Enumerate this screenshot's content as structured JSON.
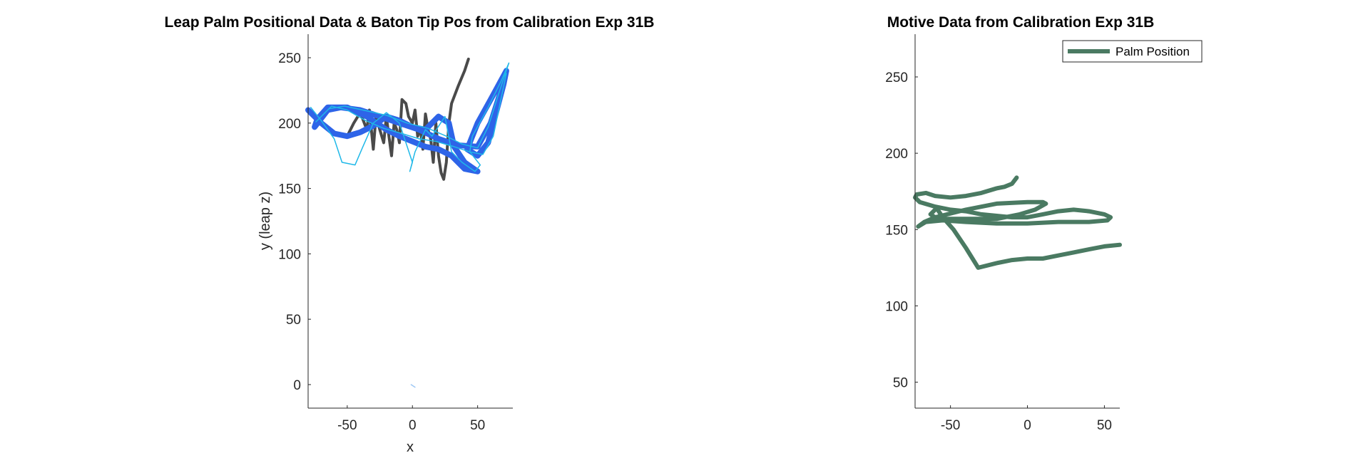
{
  "chart_data": [
    {
      "type": "line",
      "title": "Leap Palm Positional Data & Baton Tip Pos from Calibration Exp 31B",
      "xlabel": "x",
      "ylabel": "y (leap z)",
      "xlim": [
        -80,
        77
      ],
      "ylim": [
        -18,
        268
      ],
      "xticks": [
        -50,
        0,
        50
      ],
      "yticks": [
        0,
        50,
        100,
        150,
        200,
        250
      ],
      "grid": false,
      "series": [
        {
          "color": "#4a4a4a",
          "width": 4,
          "points": [
            [
              -50,
              190
            ],
            [
              -45,
              200
            ],
            [
              -40,
              208
            ],
            [
              -35,
              195
            ],
            [
              -33,
              210
            ],
            [
              -30,
              180
            ],
            [
              -28,
              205
            ],
            [
              -25,
              195
            ],
            [
              -22,
              185
            ],
            [
              -20,
              205
            ],
            [
              -18,
              190
            ],
            [
              -16,
              175
            ],
            [
              -14,
              200
            ],
            [
              -12,
              195
            ],
            [
              -10,
              185
            ],
            [
              -8,
              218
            ],
            [
              -5,
              215
            ],
            [
              -3,
              205
            ],
            [
              0,
              200
            ],
            [
              2,
              210
            ],
            [
              4,
              190
            ],
            [
              6,
              196
            ],
            [
              8,
              180
            ],
            [
              10,
              207
            ],
            [
              12,
              195
            ],
            [
              14,
              188
            ],
            [
              16,
              170
            ],
            [
              18,
              200
            ],
            [
              20,
              175
            ],
            [
              22,
              162
            ],
            [
              24,
              157
            ],
            [
              26,
              170
            ],
            [
              28,
              200
            ],
            [
              30,
              215
            ],
            [
              35,
              228
            ],
            [
              40,
              240
            ],
            [
              43,
              249
            ]
          ]
        },
        {
          "color": "#2e64e8",
          "width": 8,
          "points": [
            [
              -80,
              210
            ],
            [
              -70,
              200
            ],
            [
              -60,
              192
            ],
            [
              -50,
              190
            ],
            [
              -40,
              193
            ],
            [
              -30,
              198
            ],
            [
              -20,
              205
            ],
            [
              -10,
              202
            ],
            [
              0,
              197
            ],
            [
              10,
              195
            ],
            [
              20,
              205
            ],
            [
              28,
              200
            ],
            [
              32,
              182
            ],
            [
              40,
              170
            ],
            [
              50,
              163
            ],
            [
              40,
              165
            ],
            [
              30,
              175
            ],
            [
              20,
              180
            ],
            [
              10,
              182
            ],
            [
              0,
              186
            ],
            [
              -10,
              190
            ],
            [
              -20,
              195
            ],
            [
              -35,
              205
            ],
            [
              -50,
              212
            ],
            [
              -65,
              212
            ],
            [
              -73,
              203
            ],
            [
              -75,
              197
            ],
            [
              -65,
              210
            ],
            [
              -55,
              212
            ],
            [
              -40,
              210
            ],
            [
              -25,
              205
            ],
            [
              -10,
              200
            ],
            [
              5,
              195
            ],
            [
              20,
              188
            ],
            [
              35,
              183
            ],
            [
              50,
              182
            ],
            [
              60,
              200
            ],
            [
              68,
              225
            ],
            [
              72,
              240
            ],
            [
              60,
              218
            ],
            [
              50,
              200
            ],
            [
              42,
              180
            ],
            [
              50,
              175
            ],
            [
              58,
              185
            ],
            [
              70,
              230
            ],
            [
              72,
              240
            ]
          ]
        },
        {
          "color": "#1fb8e8",
          "width": 1.5,
          "points": [
            [
              -78,
              212
            ],
            [
              -70,
              202
            ],
            [
              -60,
              188
            ],
            [
              -54,
              170
            ],
            [
              -44,
              168
            ],
            [
              -38,
              182
            ],
            [
              -30,
              200
            ],
            [
              -20,
              208
            ],
            [
              -10,
              200
            ],
            [
              0,
              170
            ],
            [
              -2,
              163
            ],
            [
              2,
              178
            ],
            [
              10,
              195
            ],
            [
              15,
              190
            ],
            [
              25,
              205
            ],
            [
              30,
              178
            ],
            [
              38,
              170
            ],
            [
              48,
              163
            ],
            [
              52,
              168
            ],
            [
              44,
              178
            ],
            [
              32,
              182
            ],
            [
              18,
              186
            ],
            [
              5,
              188
            ],
            [
              -8,
              192
            ],
            [
              -22,
              196
            ],
            [
              -36,
              202
            ],
            [
              -50,
              210
            ],
            [
              -62,
              213
            ],
            [
              -74,
              201
            ],
            [
              -64,
              211
            ],
            [
              -52,
              213
            ],
            [
              -38,
              210
            ],
            [
              -20,
              206
            ],
            [
              -4,
              200
            ],
            [
              12,
              196
            ],
            [
              26,
              190
            ],
            [
              38,
              184
            ],
            [
              50,
              181
            ],
            [
              58,
              197
            ],
            [
              66,
              222
            ],
            [
              74,
              246
            ],
            [
              68,
              232
            ],
            [
              58,
              212
            ],
            [
              46,
              190
            ],
            [
              44,
              178
            ],
            [
              54,
              176
            ],
            [
              62,
              190
            ],
            [
              72,
              238
            ]
          ]
        },
        {
          "color": "#9ec7f4",
          "width": 1.5,
          "points": [
            [
              -1,
              0
            ],
            [
              2,
              -2
            ]
          ]
        }
      ]
    },
    {
      "type": "line",
      "title": "Motive Data from Calibration Exp 31B",
      "xlim": [
        -73,
        60
      ],
      "ylim": [
        33,
        278
      ],
      "xticks": [
        -50,
        0,
        50
      ],
      "yticks": [
        50,
        100,
        150,
        200,
        250
      ],
      "grid": false,
      "legend": "top-right",
      "series": [
        {
          "name": "Palm Position",
          "color": "#4a7a62",
          "width": 6,
          "points": [
            [
              -7,
              184
            ],
            [
              -10,
              180
            ],
            [
              -15,
              178
            ],
            [
              -20,
              177
            ],
            [
              -30,
              174
            ],
            [
              -40,
              172
            ],
            [
              -50,
              171
            ],
            [
              -60,
              172
            ],
            [
              -66,
              174
            ],
            [
              -72,
              173
            ],
            [
              -73,
              171
            ],
            [
              -70,
              168
            ],
            [
              -60,
              165
            ],
            [
              -50,
              163
            ],
            [
              -40,
              162
            ],
            [
              -30,
              160
            ],
            [
              -20,
              159
            ],
            [
              -10,
              158
            ],
            [
              0,
              158
            ],
            [
              10,
              160
            ],
            [
              20,
              162
            ],
            [
              30,
              163
            ],
            [
              40,
              162
            ],
            [
              50,
              160
            ],
            [
              54,
              158
            ],
            [
              52,
              156
            ],
            [
              40,
              155
            ],
            [
              20,
              155
            ],
            [
              0,
              154
            ],
            [
              -20,
              154
            ],
            [
              -40,
              155
            ],
            [
              -55,
              156
            ],
            [
              -66,
              155
            ],
            [
              -71,
              152
            ],
            [
              -67,
              155
            ],
            [
              -60,
              158
            ],
            [
              -40,
              163
            ],
            [
              -20,
              167
            ],
            [
              0,
              168
            ],
            [
              10,
              168
            ],
            [
              12,
              167
            ],
            [
              5,
              163
            ],
            [
              -5,
              160
            ],
            [
              -20,
              157
            ],
            [
              -30,
              157
            ],
            [
              -40,
              157
            ],
            [
              -52,
              157
            ],
            [
              -60,
              158
            ],
            [
              -63,
              160
            ],
            [
              -59,
              164
            ],
            [
              -55,
              158
            ],
            [
              -48,
              150
            ],
            [
              -40,
              138
            ],
            [
              -32,
              125
            ],
            [
              -20,
              128
            ],
            [
              -10,
              130
            ],
            [
              0,
              131
            ],
            [
              10,
              131
            ],
            [
              20,
              133
            ],
            [
              30,
              135
            ],
            [
              40,
              137
            ],
            [
              50,
              139
            ],
            [
              60,
              140
            ]
          ]
        }
      ]
    }
  ]
}
